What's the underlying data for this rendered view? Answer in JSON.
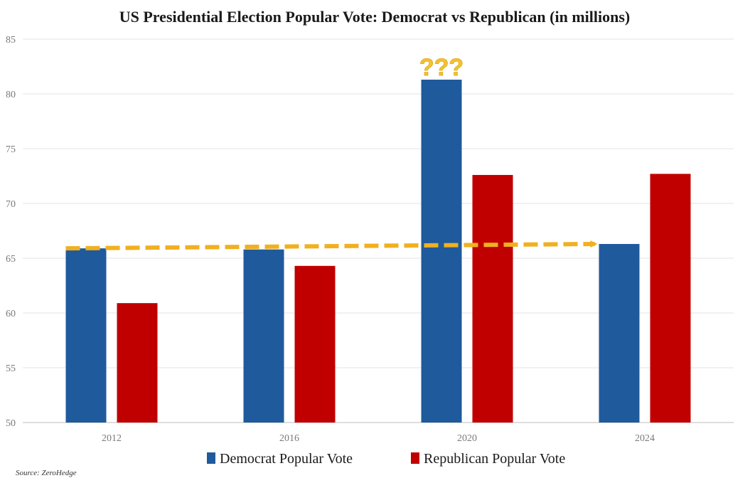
{
  "chart_data": {
    "type": "bar",
    "title": "US Presidential Election Popular Vote: Democrat vs  Republican (in millions)",
    "categories": [
      "2012",
      "2016",
      "2020",
      "2024"
    ],
    "series": [
      {
        "name": "Democrat Popular Vote",
        "values": [
          65.9,
          65.8,
          81.3,
          66.3
        ],
        "color": "#1f5a9c"
      },
      {
        "name": "Republican Popular Vote",
        "values": [
          60.9,
          64.3,
          72.6,
          72.7
        ],
        "color": "#c00000"
      }
    ],
    "ylim": [
      50,
      85
    ],
    "yticks": [
      50,
      55,
      60,
      65,
      70,
      75,
      80,
      85
    ],
    "xlabel": "",
    "ylabel": "",
    "grid": true,
    "legend_position": "bottom",
    "annotations": [
      {
        "text": "???",
        "category": "2020",
        "series": 0,
        "color": "#f2c230"
      },
      {
        "type": "dashed-arrow",
        "from": {
          "category": "2012",
          "value": 65.9
        },
        "to": {
          "category": "2024",
          "value": 66.3
        },
        "color": "#f0b020"
      }
    ]
  },
  "source": "Source: ZeroHedge"
}
